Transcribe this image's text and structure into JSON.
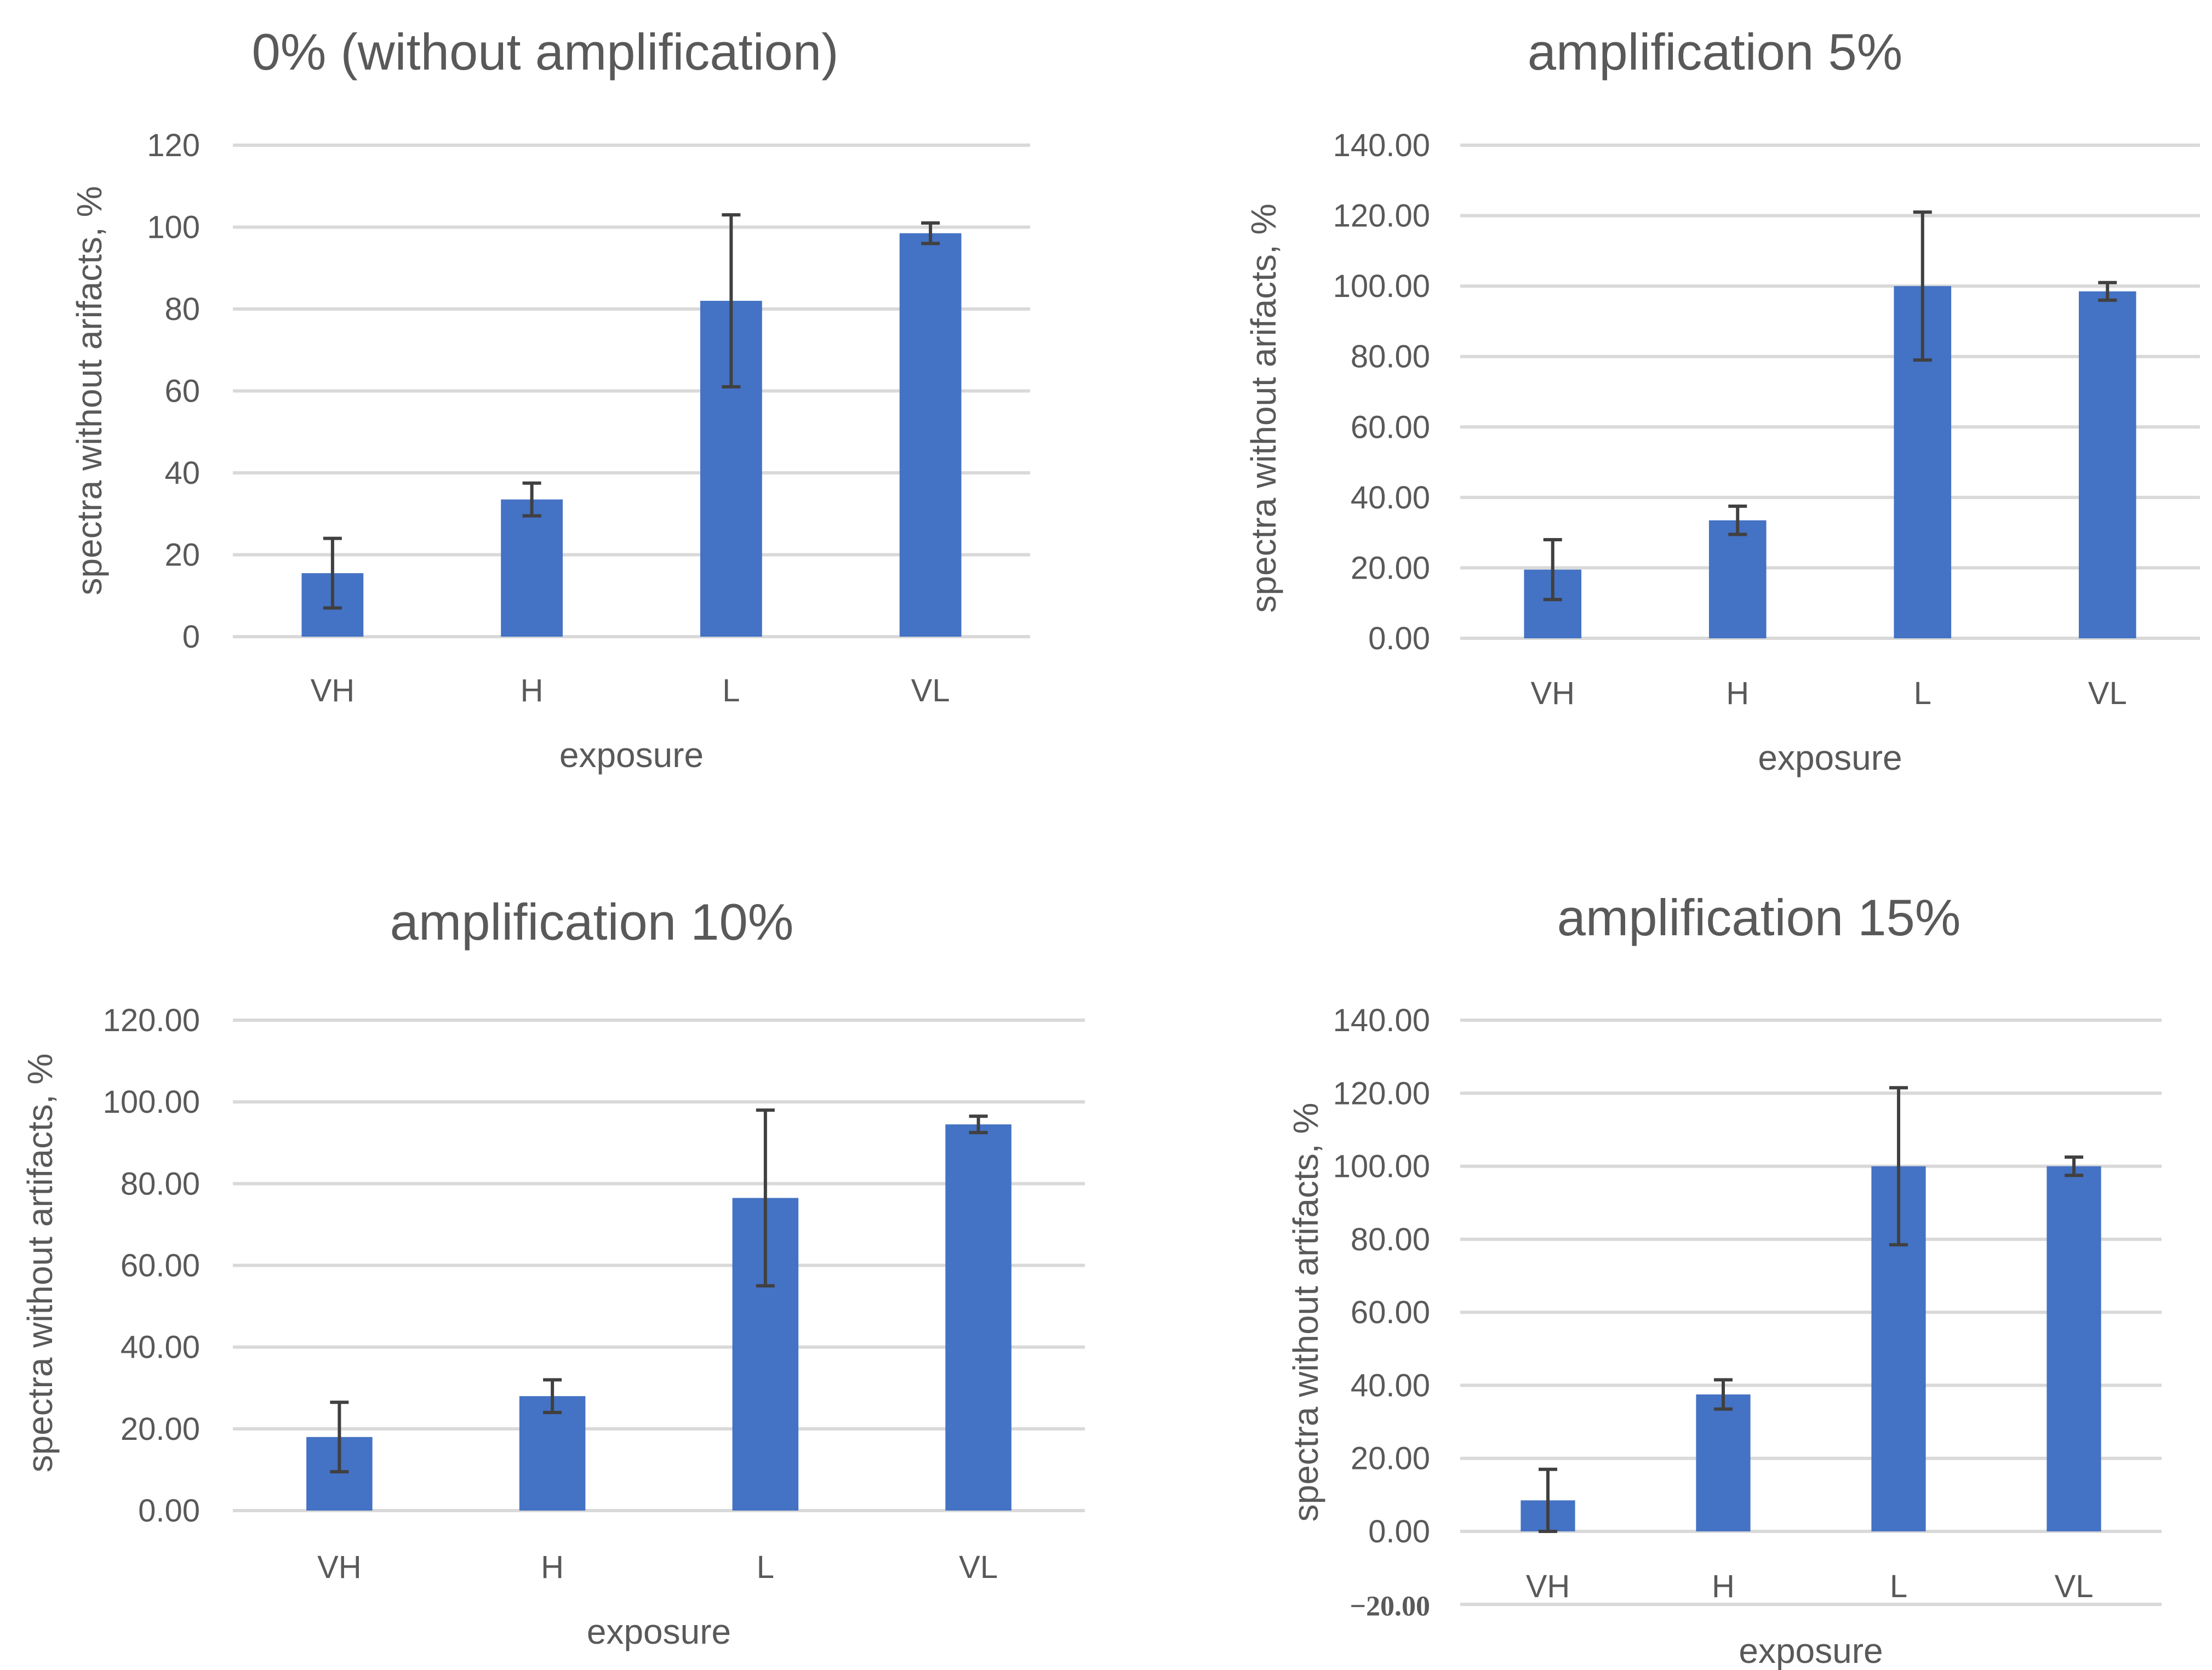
{
  "colors": {
    "bar": "#4472c4",
    "grid": "#d9d9d9",
    "text": "#595959",
    "error": "#404040"
  },
  "chart_data": [
    {
      "type": "bar",
      "title": "0% (without amplification)",
      "xlabel": "exposure",
      "ylabel": "spectra without arifacts, %",
      "categories": [
        "VH",
        "H",
        "L",
        "VL"
      ],
      "values": [
        15.5,
        33.5,
        82,
        98.5
      ],
      "errors": [
        8.5,
        4,
        21,
        2.5
      ],
      "ylim": [
        0,
        120
      ],
      "yticks": [
        "0",
        "20",
        "40",
        "60",
        "80",
        "100",
        "120"
      ]
    },
    {
      "type": "bar",
      "title": "amplification 5%",
      "xlabel": "exposure",
      "ylabel": "spectra without arifacts, %",
      "categories": [
        "VH",
        "H",
        "L",
        "VL"
      ],
      "values": [
        19.5,
        33.5,
        100,
        98.5
      ],
      "errors": [
        8.5,
        4,
        21,
        2.5
      ],
      "ylim": [
        0,
        140
      ],
      "yticks": [
        "0.00",
        "20.00",
        "40.00",
        "60.00",
        "80.00",
        "100.00",
        "120.00",
        "140.00"
      ]
    },
    {
      "type": "bar",
      "title": "amplification 10%",
      "xlabel": "exposure",
      "ylabel": "spectra without artifacts, %",
      "categories": [
        "VH",
        "H",
        "L",
        "VL"
      ],
      "values": [
        18,
        28,
        76.5,
        94.5
      ],
      "errors": [
        8.5,
        4,
        21.5,
        2
      ],
      "ylim": [
        0,
        120
      ],
      "yticks": [
        "0.00",
        "20.00",
        "40.00",
        "60.00",
        "80.00",
        "100.00",
        "120.00"
      ]
    },
    {
      "type": "bar",
      "title": "amplification 15%",
      "xlabel": "exposure",
      "ylabel": "spectra without artifacts, %",
      "categories": [
        "VH",
        "H",
        "L",
        "VL"
      ],
      "values": [
        8.5,
        37.5,
        100,
        100
      ],
      "errors": [
        8.5,
        4,
        21.5,
        2.5
      ],
      "ylim": [
        -20,
        140
      ],
      "yticks": [
        "−20.00",
        "0.00",
        "20.00",
        "40.00",
        "60.00",
        "80.00",
        "100.00",
        "120.00",
        "140.00"
      ]
    }
  ]
}
